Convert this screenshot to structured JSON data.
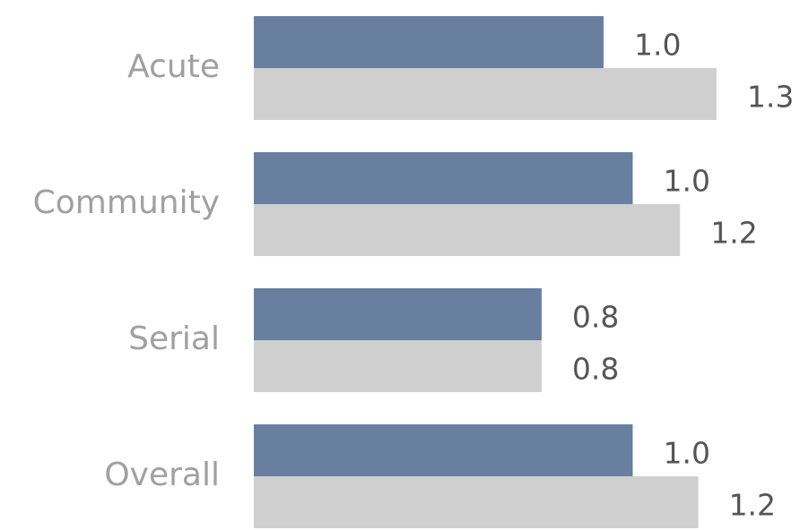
{
  "chart_data": {
    "type": "hbar",
    "categories": [
      "Acute",
      "Community",
      "Serial",
      "Overall"
    ],
    "series": [
      {
        "color": "#687f9f",
        "values": [
          0.96,
          1.04,
          0.79,
          1.04
        ],
        "value_labels": [
          "1.0",
          "1.0",
          "0.8",
          "1.0"
        ]
      },
      {
        "color": "#cfcfcf",
        "values": [
          1.27,
          1.17,
          0.79,
          1.22
        ],
        "value_labels": [
          "1.3",
          "1.2",
          "0.8",
          "1.2"
        ]
      }
    ],
    "xlim": [
      0,
      1.45
    ]
  }
}
